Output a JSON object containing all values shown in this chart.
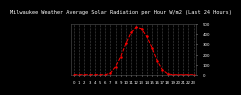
{
  "title": "Milwaukee Weather Average Solar Radiation per Hour W/m2 (Last 24 Hours)",
  "hours": [
    0,
    1,
    2,
    3,
    4,
    5,
    6,
    7,
    8,
    9,
    10,
    11,
    12,
    13,
    14,
    15,
    16,
    17,
    18,
    19,
    20,
    21,
    22,
    23
  ],
  "values": [
    0,
    0,
    0,
    0,
    0,
    0,
    0,
    15,
    80,
    180,
    310,
    420,
    470,
    455,
    380,
    270,
    140,
    50,
    10,
    0,
    0,
    0,
    0,
    0
  ],
  "line_color": "#ff0000",
  "bg_color": "#000000",
  "plot_bg": "#000000",
  "grid_color": "#888888",
  "tick_color": "#ffffff",
  "ylim": [
    0,
    500
  ],
  "yticks": [
    0,
    100,
    200,
    300,
    400,
    500
  ],
  "title_fontsize": 3.8,
  "tick_fontsize": 2.8
}
